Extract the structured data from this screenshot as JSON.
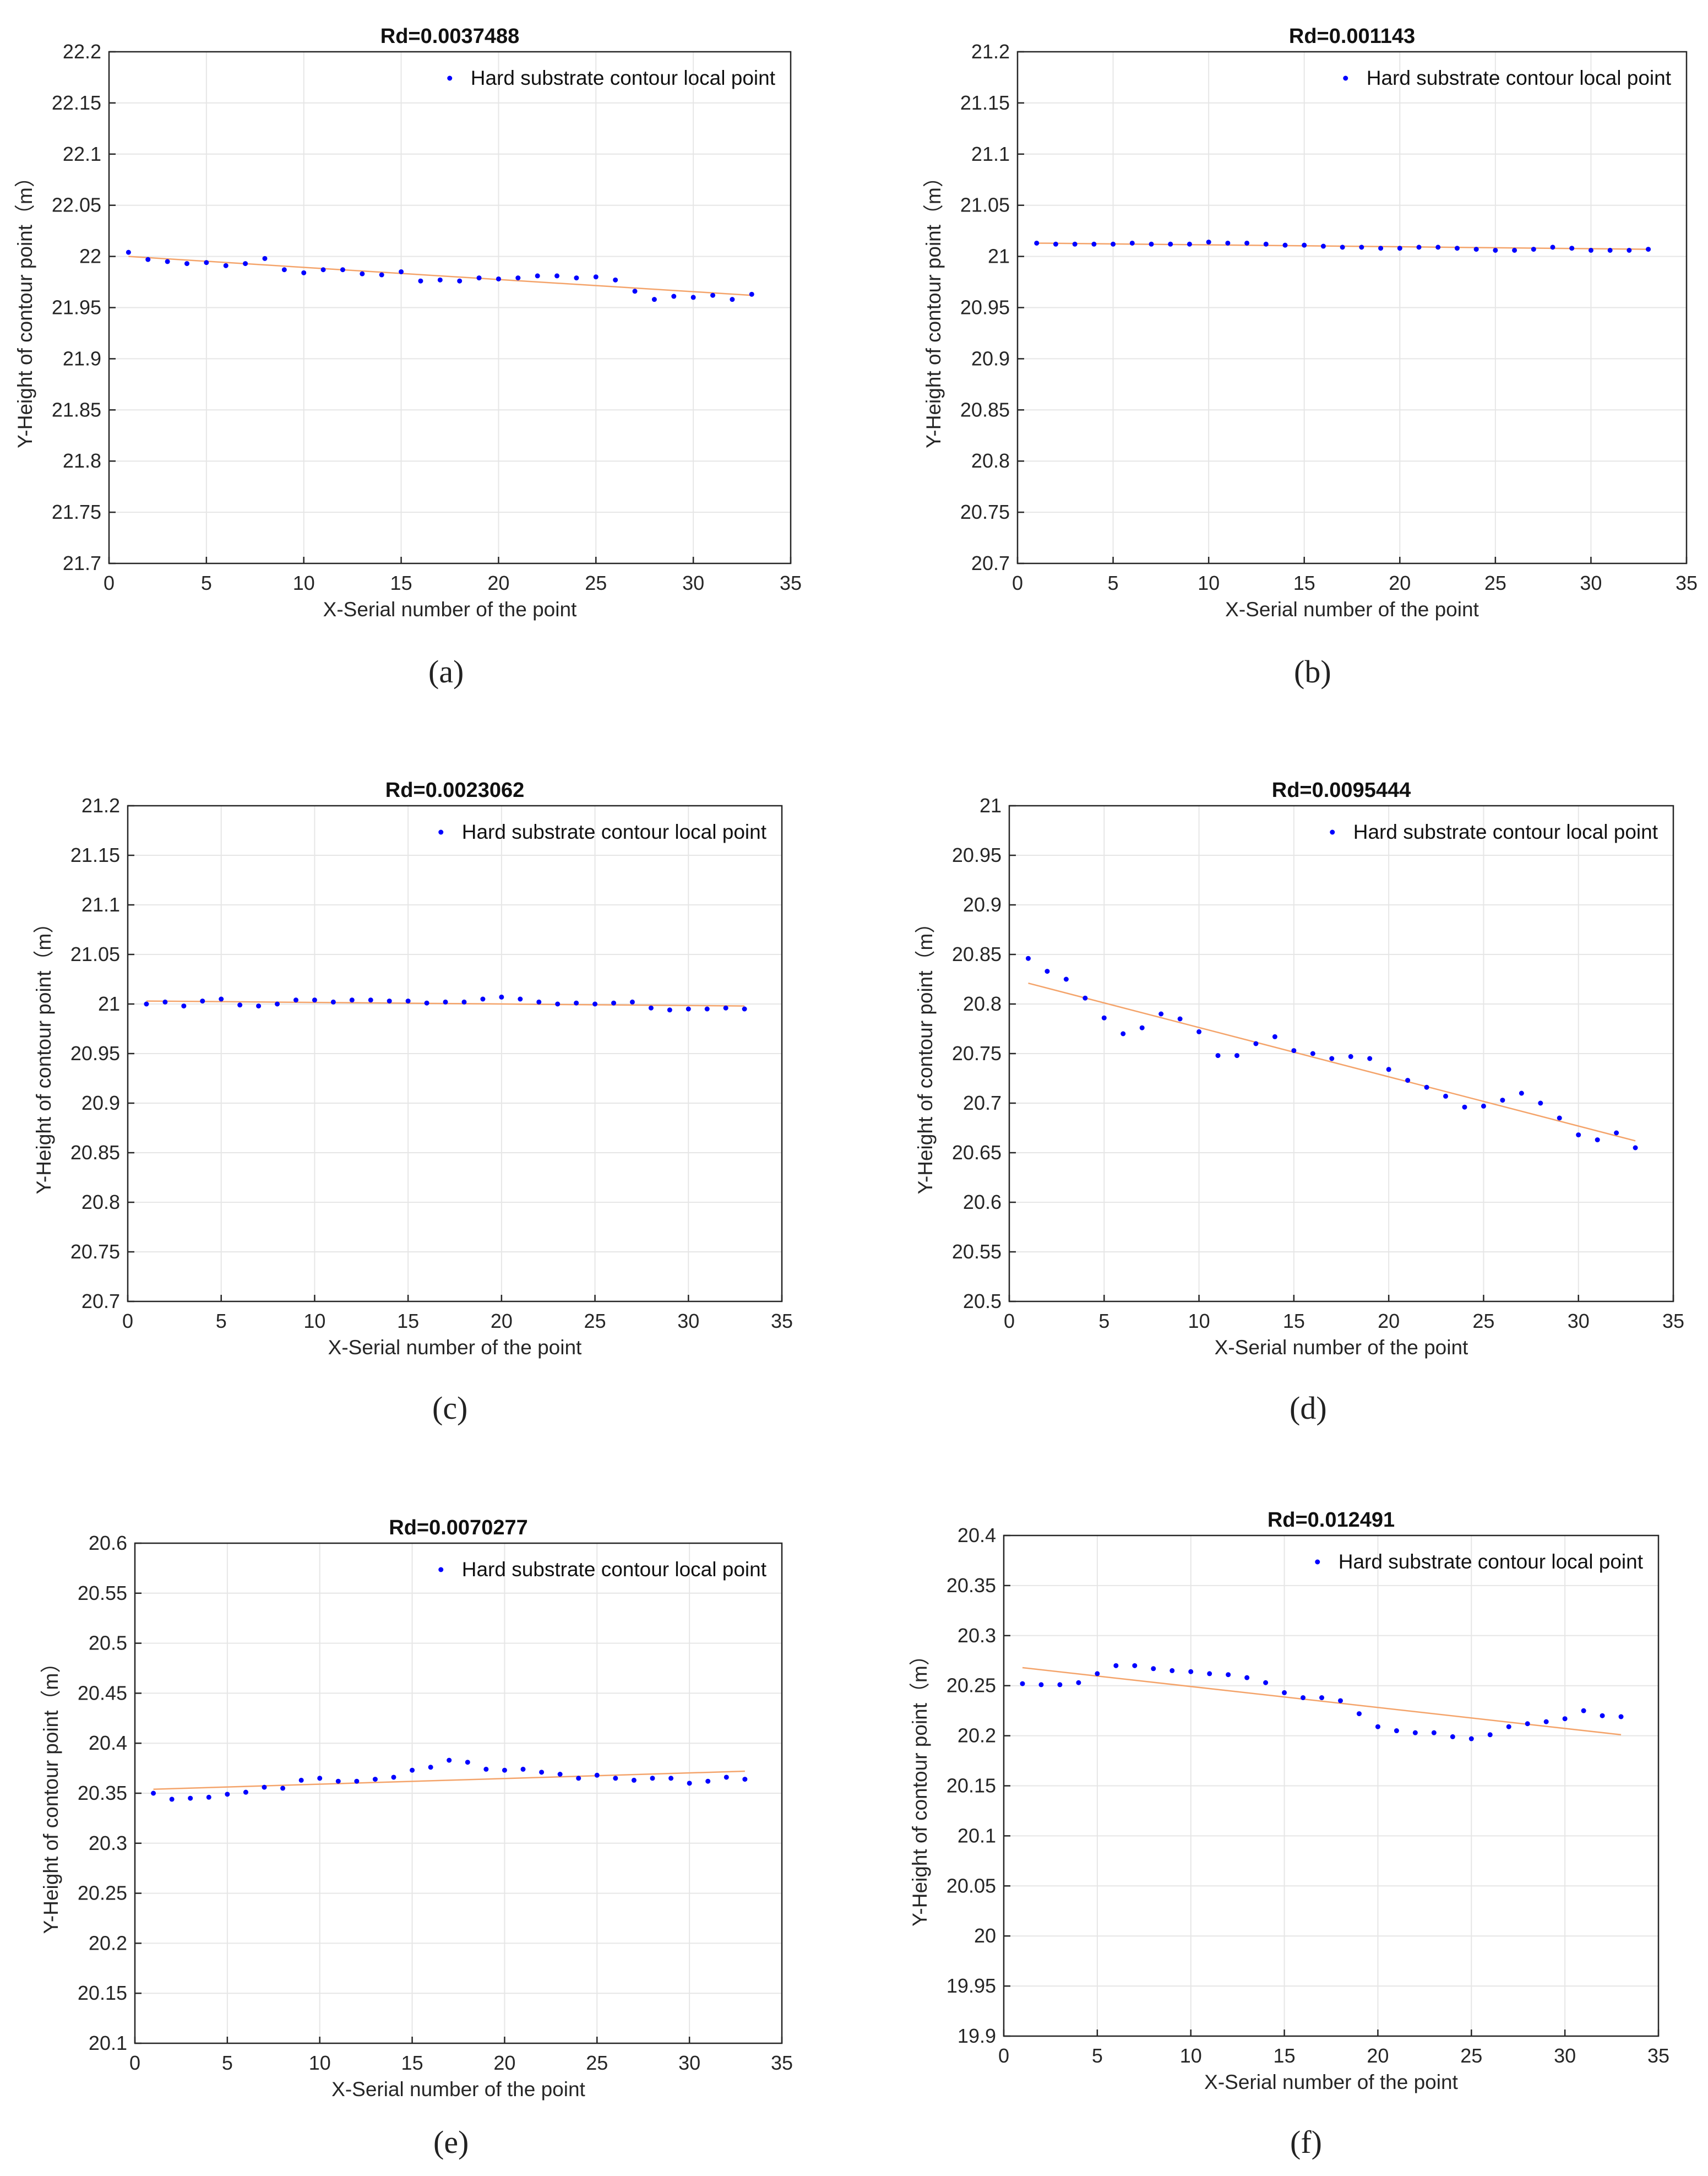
{
  "colors": {
    "points": "#0000ff",
    "fit_line": "#f4a46b",
    "grid": "#e6e6e6",
    "axis": "#262626"
  },
  "chart_data": [
    {
      "panel": "(a)",
      "type": "scatter",
      "title": "Rd=0.0037488",
      "xlabel": "X-Serial number of the point",
      "ylabel": "Y-Height of contour point（m）",
      "xlim": [
        0,
        35
      ],
      "ylim": [
        21.7,
        22.2
      ],
      "xticks": [
        "0",
        "5",
        "10",
        "15",
        "20",
        "25",
        "30",
        "35"
      ],
      "yticks": [
        "21.7",
        "21.75",
        "21.8",
        "21.85",
        "21.9",
        "21.95",
        "22",
        "22.05",
        "22.1",
        "22.15",
        "22.2"
      ],
      "grid": true,
      "legend_position": "top-right",
      "series": [
        {
          "name": "Hard substrate contour local point",
          "type": "scatter",
          "x": [
            1,
            2,
            3,
            4,
            5,
            6,
            7,
            8,
            9,
            10,
            11,
            12,
            13,
            14,
            15,
            16,
            17,
            18,
            19,
            20,
            21,
            22,
            23,
            24,
            25,
            26,
            27,
            28,
            29,
            30,
            31,
            32,
            33
          ],
          "y": [
            22.004,
            21.997,
            21.995,
            21.993,
            21.994,
            21.991,
            21.993,
            21.998,
            21.987,
            21.984,
            21.987,
            21.987,
            21.983,
            21.982,
            21.985,
            21.976,
            21.977,
            21.976,
            21.979,
            21.978,
            21.979,
            21.981,
            21.981,
            21.979,
            21.98,
            21.977,
            21.966,
            21.958,
            21.961,
            21.96,
            21.962,
            21.958,
            21.963
          ]
        }
      ],
      "fit_line": {
        "x": [
          1,
          33
        ],
        "y": [
          22.0,
          21.962
        ]
      }
    },
    {
      "panel": "(b)",
      "type": "scatter",
      "title": "Rd=0.001143",
      "xlabel": "X-Serial number of the point",
      "ylabel": "Y-Height of contour point（m）",
      "xlim": [
        0,
        35
      ],
      "ylim": [
        20.7,
        21.2
      ],
      "xticks": [
        "0",
        "5",
        "10",
        "15",
        "20",
        "25",
        "30",
        "35"
      ],
      "yticks": [
        "20.7",
        "20.75",
        "20.8",
        "20.85",
        "20.9",
        "20.95",
        "21",
        "21.05",
        "21.1",
        "21.15",
        "21.2"
      ],
      "grid": true,
      "legend_position": "top-right",
      "series": [
        {
          "name": "Hard substrate contour local point",
          "type": "scatter",
          "x": [
            1,
            2,
            3,
            4,
            5,
            6,
            7,
            8,
            9,
            10,
            11,
            12,
            13,
            14,
            15,
            16,
            17,
            18,
            19,
            20,
            21,
            22,
            23,
            24,
            25,
            26,
            27,
            28,
            29,
            30,
            31,
            32,
            33
          ],
          "y": [
            21.013,
            21.012,
            21.012,
            21.012,
            21.012,
            21.013,
            21.012,
            21.012,
            21.012,
            21.014,
            21.013,
            21.013,
            21.012,
            21.011,
            21.011,
            21.01,
            21.009,
            21.009,
            21.008,
            21.008,
            21.009,
            21.009,
            21.008,
            21.007,
            21.006,
            21.006,
            21.007,
            21.009,
            21.008,
            21.006,
            21.006,
            21.006,
            21.007
          ]
        }
      ],
      "fit_line": {
        "x": [
          1,
          33
        ],
        "y": [
          21.013,
          21.007
        ]
      }
    },
    {
      "panel": "(c)",
      "type": "scatter",
      "title": "Rd=0.0023062",
      "xlabel": "X-Serial number of the point",
      "ylabel": "Y-Height of contour point（m）",
      "xlim": [
        0,
        35
      ],
      "ylim": [
        20.7,
        21.2
      ],
      "xticks": [
        "0",
        "5",
        "10",
        "15",
        "20",
        "25",
        "30",
        "35"
      ],
      "yticks": [
        "20.7",
        "20.75",
        "20.8",
        "20.85",
        "20.9",
        "20.95",
        "21",
        "21.05",
        "21.1",
        "21.15",
        "21.2"
      ],
      "grid": true,
      "legend_position": "top-right",
      "series": [
        {
          "name": "Hard substrate contour local point",
          "type": "scatter",
          "x": [
            1,
            2,
            3,
            4,
            5,
            6,
            7,
            8,
            9,
            10,
            11,
            12,
            13,
            14,
            15,
            16,
            17,
            18,
            19,
            20,
            21,
            22,
            23,
            24,
            25,
            26,
            27,
            28,
            29,
            30,
            31,
            32,
            33
          ],
          "y": [
            21.0,
            21.002,
            20.998,
            21.003,
            21.005,
            20.999,
            20.998,
            21.0,
            21.004,
            21.004,
            21.002,
            21.004,
            21.004,
            21.003,
            21.003,
            21.001,
            21.002,
            21.002,
            21.005,
            21.007,
            21.005,
            21.002,
            21.0,
            21.001,
            21.0,
            21.001,
            21.002,
            20.996,
            20.994,
            20.995,
            20.995,
            20.996,
            20.995
          ]
        }
      ],
      "fit_line": {
        "x": [
          1,
          33
        ],
        "y": [
          21.003,
          20.998
        ]
      }
    },
    {
      "panel": "(d)",
      "type": "scatter",
      "title": "Rd=0.0095444",
      "xlabel": "X-Serial number of the point",
      "ylabel": "Y-Height of contour point（m）",
      "xlim": [
        0,
        35
      ],
      "ylim": [
        20.5,
        21.0
      ],
      "xticks": [
        "0",
        "5",
        "10",
        "15",
        "20",
        "25",
        "30",
        "35"
      ],
      "yticks": [
        "20.5",
        "20.55",
        "20.6",
        "20.65",
        "20.7",
        "20.75",
        "20.8",
        "20.85",
        "20.9",
        "20.95",
        "21"
      ],
      "grid": true,
      "legend_position": "top-right",
      "series": [
        {
          "name": "Hard substrate contour local point",
          "type": "scatter",
          "x": [
            1,
            2,
            3,
            4,
            5,
            6,
            7,
            8,
            9,
            10,
            11,
            12,
            13,
            14,
            15,
            16,
            17,
            18,
            19,
            20,
            21,
            22,
            23,
            24,
            25,
            26,
            27,
            28,
            29,
            30,
            31,
            32,
            33
          ],
          "y": [
            20.846,
            20.833,
            20.825,
            20.806,
            20.786,
            20.77,
            20.776,
            20.79,
            20.785,
            20.772,
            20.748,
            20.748,
            20.76,
            20.767,
            20.753,
            20.75,
            20.745,
            20.747,
            20.745,
            20.734,
            20.723,
            20.716,
            20.707,
            20.696,
            20.697,
            20.703,
            20.71,
            20.7,
            20.685,
            20.668,
            20.663,
            20.67,
            20.655
          ]
        }
      ],
      "fit_line": {
        "x": [
          1,
          33
        ],
        "y": [
          20.821,
          20.662
        ]
      }
    },
    {
      "panel": "(e)",
      "type": "scatter",
      "title": "Rd=0.0070277",
      "xlabel": "X-Serial number of the point",
      "ylabel": "Y-Height of contour point（m）",
      "xlim": [
        0,
        35
      ],
      "ylim": [
        20.1,
        20.6
      ],
      "xticks": [
        "0",
        "5",
        "10",
        "15",
        "20",
        "25",
        "30",
        "35"
      ],
      "yticks": [
        "20.1",
        "20.15",
        "20.2",
        "20.25",
        "20.3",
        "20.35",
        "20.4",
        "20.45",
        "20.5",
        "20.55",
        "20.6"
      ],
      "grid": true,
      "legend_position": "top-right",
      "series": [
        {
          "name": "Hard substrate contour local point",
          "type": "scatter",
          "x": [
            1,
            2,
            3,
            4,
            5,
            6,
            7,
            8,
            9,
            10,
            11,
            12,
            13,
            14,
            15,
            16,
            17,
            18,
            19,
            20,
            21,
            22,
            23,
            24,
            25,
            26,
            27,
            28,
            29,
            30,
            31,
            32,
            33
          ],
          "y": [
            20.35,
            20.344,
            20.345,
            20.346,
            20.349,
            20.351,
            20.356,
            20.355,
            20.363,
            20.365,
            20.362,
            20.362,
            20.364,
            20.366,
            20.373,
            20.376,
            20.383,
            20.381,
            20.374,
            20.373,
            20.374,
            20.371,
            20.369,
            20.365,
            20.368,
            20.365,
            20.363,
            20.365,
            20.365,
            20.36,
            20.362,
            20.366,
            20.364
          ]
        }
      ],
      "fit_line": {
        "x": [
          1,
          33
        ],
        "y": [
          20.354,
          20.372
        ]
      }
    },
    {
      "panel": "(f)",
      "type": "scatter",
      "title": "Rd=0.012491",
      "xlabel": "X-Serial number of the point",
      "ylabel": "Y-Height of contour point（m）",
      "xlim": [
        0,
        35
      ],
      "ylim": [
        19.9,
        20.4
      ],
      "xticks": [
        "0",
        "5",
        "10",
        "15",
        "20",
        "25",
        "30",
        "35"
      ],
      "yticks": [
        "19.9",
        "19.95",
        "20",
        "20.05",
        "20.1",
        "20.15",
        "20.2",
        "20.25",
        "20.3",
        "20.35",
        "20.4"
      ],
      "grid": true,
      "legend_position": "top-right",
      "series": [
        {
          "name": "Hard substrate contour local point",
          "type": "scatter",
          "x": [
            1,
            2,
            3,
            4,
            5,
            6,
            7,
            8,
            9,
            10,
            11,
            12,
            13,
            14,
            15,
            16,
            17,
            18,
            19,
            20,
            21,
            22,
            23,
            24,
            25,
            26,
            27,
            28,
            29,
            30,
            31,
            32,
            33
          ],
          "y": [
            20.252,
            20.251,
            20.251,
            20.253,
            20.262,
            20.27,
            20.27,
            20.267,
            20.265,
            20.264,
            20.262,
            20.261,
            20.258,
            20.253,
            20.243,
            20.238,
            20.238,
            20.235,
            20.222,
            20.209,
            20.205,
            20.203,
            20.203,
            20.199,
            20.197,
            20.201,
            20.209,
            20.212,
            20.214,
            20.217,
            20.225,
            20.22,
            20.219
          ]
        }
      ],
      "fit_line": {
        "x": [
          1,
          33
        ],
        "y": [
          20.268,
          20.201
        ]
      }
    }
  ]
}
